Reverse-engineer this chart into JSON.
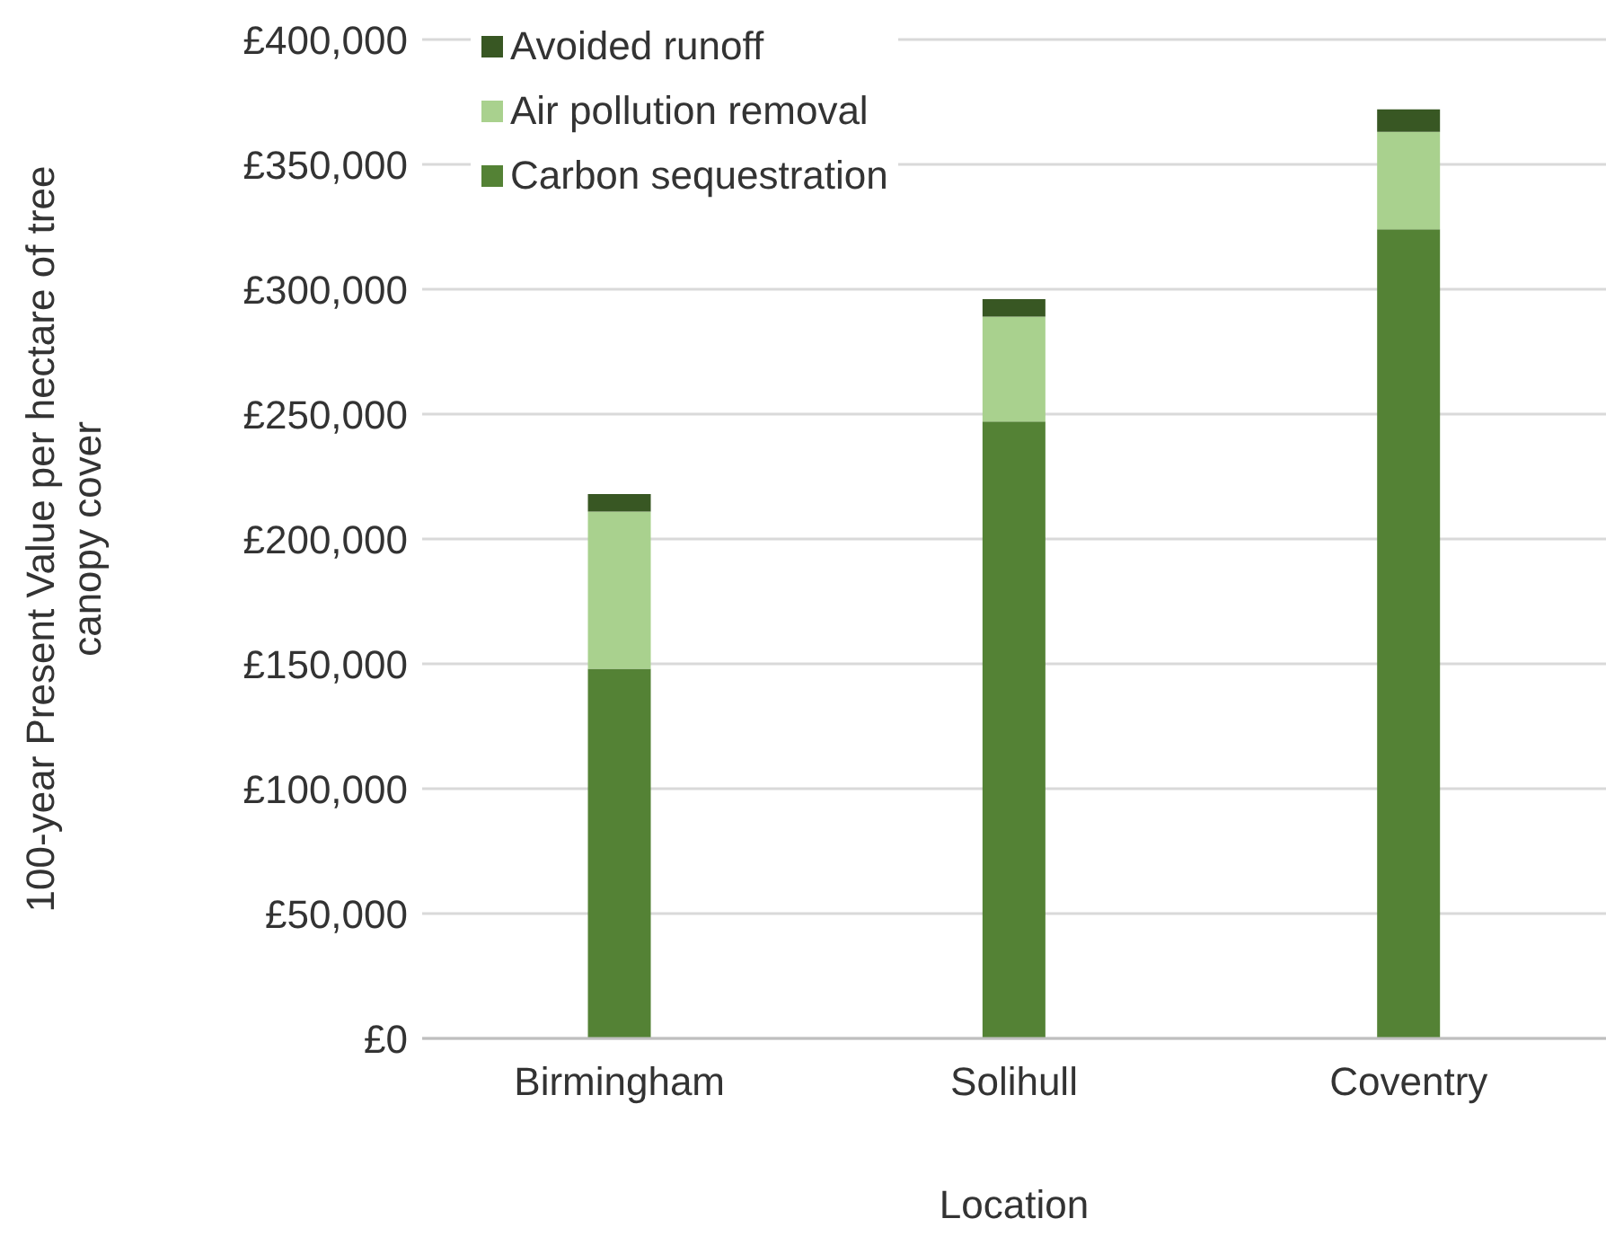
{
  "chart_data": {
    "type": "bar",
    "stacked": true,
    "xlabel": "Location",
    "ylabel": "100-year Present Value per hectare of tree canopy cover",
    "categories": [
      "Birmingham",
      "Solihull",
      "Coventry"
    ],
    "series": [
      {
        "name": "Carbon sequestration",
        "color": "#548235",
        "values": [
          148000,
          247000,
          324000
        ]
      },
      {
        "name": "Air pollution removal",
        "color": "#a9d18e",
        "values": [
          63000,
          42000,
          39000
        ]
      },
      {
        "name": "Avoided runoff",
        "color": "#385723",
        "values": [
          7000,
          7000,
          9000
        ]
      }
    ],
    "ylim": [
      0,
      400000
    ],
    "yticks": [
      {
        "value": 0,
        "label": "£0"
      },
      {
        "value": 50000,
        "label": "£50,000"
      },
      {
        "value": 100000,
        "label": "£100,000"
      },
      {
        "value": 150000,
        "label": "£150,000"
      },
      {
        "value": 200000,
        "label": "£200,000"
      },
      {
        "value": 250000,
        "label": "£250,000"
      },
      {
        "value": 300000,
        "label": "£300,000"
      },
      {
        "value": 350000,
        "label": "£350,000"
      },
      {
        "value": 400000,
        "label": "£400,000"
      }
    ],
    "grid": "y",
    "legend": "top left"
  }
}
